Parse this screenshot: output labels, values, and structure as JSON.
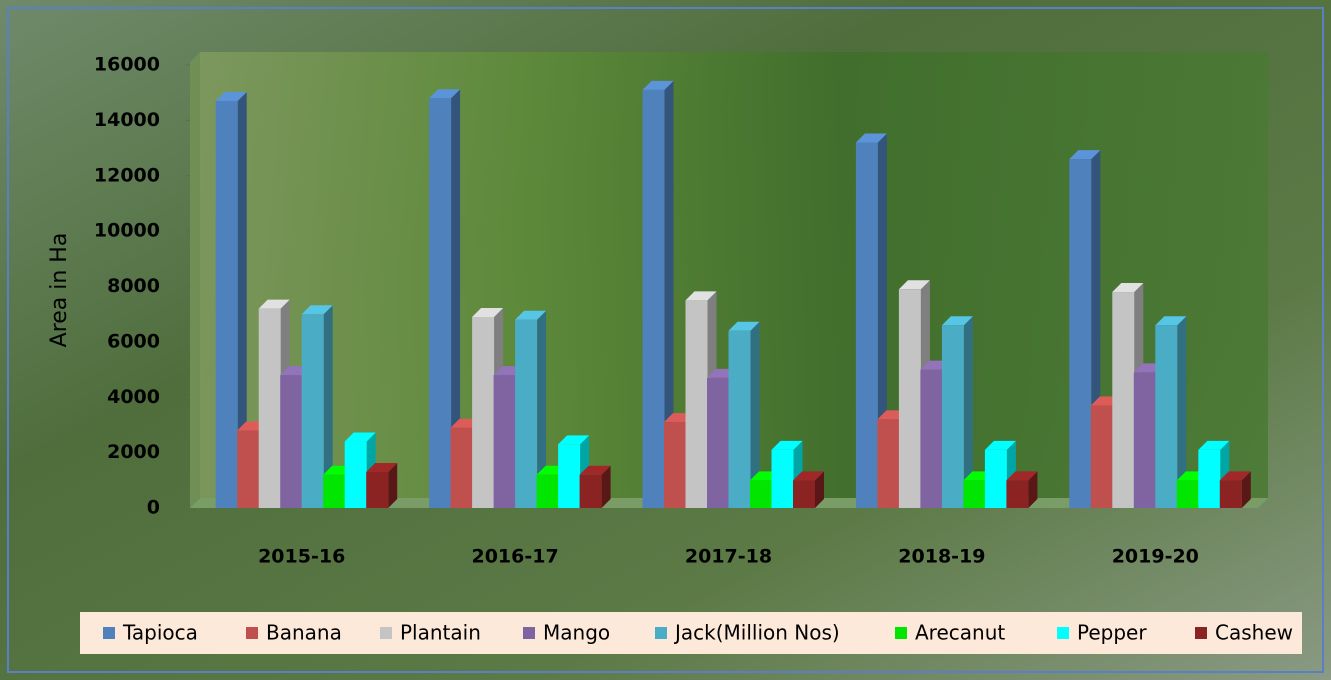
{
  "chart_data": {
    "type": "bar3d",
    "ylabel": "Area in Ha",
    "categories": [
      "2015-16",
      "2016-17",
      "2017-18",
      "2018-19",
      "2019-20"
    ],
    "series": [
      {
        "name": "Tapioca",
        "color": "#4f81bd",
        "values": [
          14700,
          14800,
          15100,
          13200,
          12600
        ]
      },
      {
        "name": "Banana",
        "color": "#c0504d",
        "values": [
          2800,
          2900,
          3100,
          3200,
          3700
        ]
      },
      {
        "name": "Plantain",
        "color": "#c4c4c4",
        "values": [
          7200,
          6900,
          7500,
          7900,
          7800
        ]
      },
      {
        "name": "Mango",
        "color": "#8064a2",
        "values": [
          4800,
          4800,
          4700,
          5000,
          4900
        ]
      },
      {
        "name": "Jack(Million Nos)",
        "color": "#4bacc6",
        "values": [
          7000,
          6800,
          6400,
          6600,
          6600
        ]
      },
      {
        "name": "Arecanut",
        "color": "#00e600",
        "values": [
          1200,
          1200,
          1000,
          1000,
          1000
        ]
      },
      {
        "name": "Pepper",
        "color": "#00ffff",
        "values": [
          2400,
          2300,
          2100,
          2100,
          2100
        ]
      },
      {
        "name": "Cashew",
        "color": "#8b2323",
        "values": [
          1300,
          1200,
          1000,
          1000,
          1000
        ]
      }
    ],
    "ylim": [
      0,
      16000
    ],
    "yticks": [
      0,
      2000,
      4000,
      6000,
      8000,
      10000,
      12000,
      14000,
      16000
    ]
  }
}
